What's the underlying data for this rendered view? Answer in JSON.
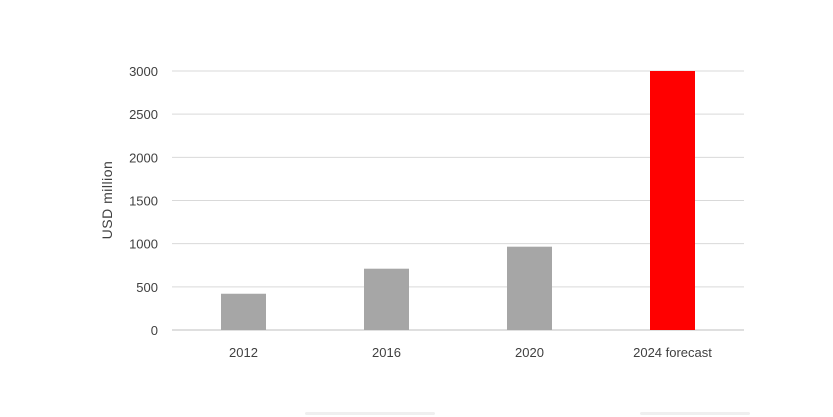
{
  "chart_data": {
    "type": "bar",
    "title": "",
    "xlabel": "",
    "ylabel": "USD million",
    "ylim": [
      0,
      3000
    ],
    "yticks": [
      0,
      500,
      1000,
      1500,
      2000,
      2500,
      3000
    ],
    "grid": true,
    "categories": [
      "2012",
      "2016",
      "2020",
      "2024 forecast"
    ],
    "values": [
      420,
      710,
      965,
      3000
    ],
    "bar_colors": [
      "#a6a6a6",
      "#a6a6a6",
      "#a6a6a6",
      "#ff0000"
    ]
  }
}
